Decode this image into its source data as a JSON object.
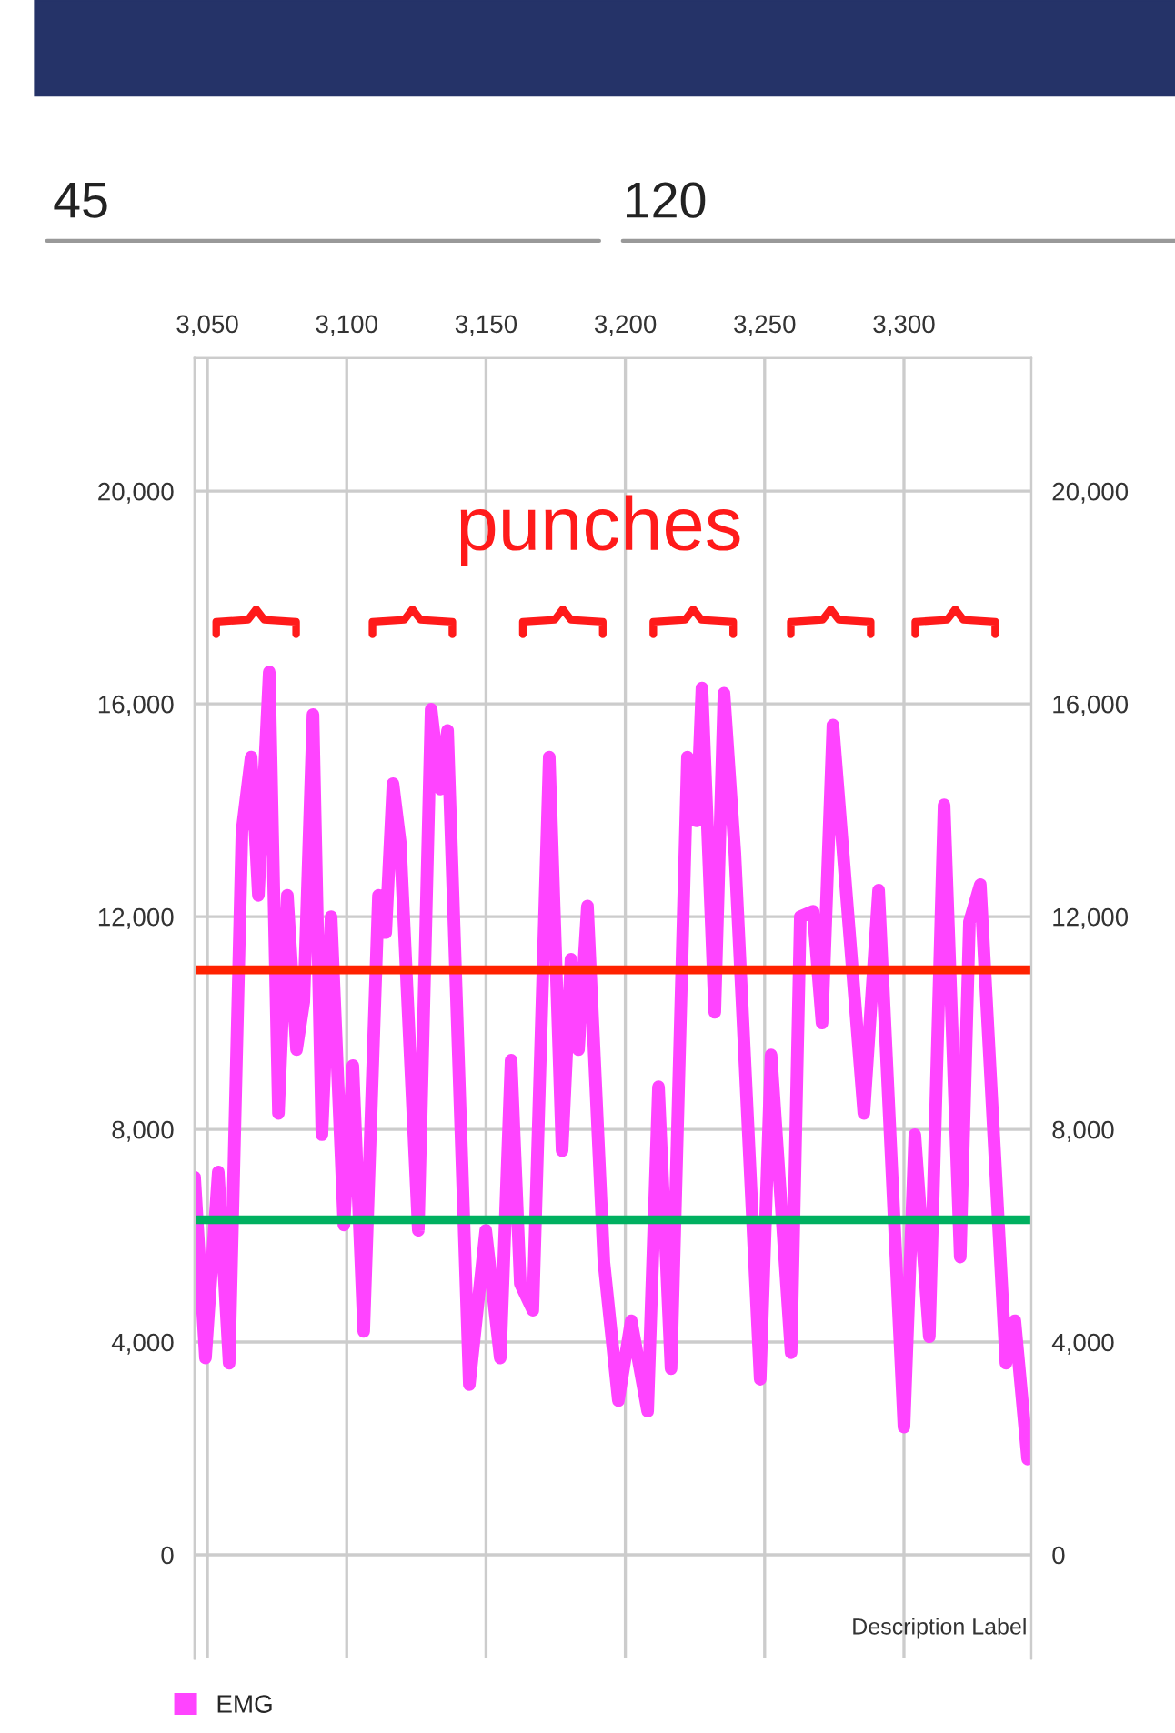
{
  "chart_data": {
    "type": "line",
    "x": [
      3045.4,
      3049.3,
      3053.9,
      3057.8,
      3062.4,
      3065.7,
      3068.3,
      3072.2,
      3075.5,
      3078.7,
      3082,
      3084.6,
      3087.9,
      3091.1,
      3094.4,
      3099,
      3102.2,
      3106.1,
      3111.4,
      3114,
      3116.6,
      3119.2,
      3125.7,
      3130.3,
      3133.6,
      3136.2,
      3144,
      3149.9,
      3155.1,
      3159,
      3162.3,
      3166.8,
      3172.7,
      3177.3,
      3180.5,
      3183.2,
      3186.4,
      3192.3,
      3197.5,
      3202.1,
      3208,
      3211.9,
      3216.4,
      3222.3,
      3225.6,
      3227.5,
      3232.1,
      3235.4,
      3239.3,
      3248.4,
      3252.3,
      3259.5,
      3262.8,
      3267.4,
      3270.6,
      3274.5,
      3285.6,
      3290.9,
      3300,
      3303.9,
      3309.1,
      3314.4,
      3320.2,
      3323.5,
      3327.4,
      3336.6,
      3339.8,
      3344.4
    ],
    "series": [
      {
        "name": "EMG",
        "color": "#ff44ff",
        "values": [
          7100,
          3700,
          7200,
          3600,
          13600,
          15000,
          12400,
          16600,
          8300,
          12400,
          9500,
          10400,
          15800,
          7900,
          12000,
          6200,
          9200,
          4200,
          12400,
          11700,
          14500,
          13400,
          6100,
          15900,
          14400,
          15500,
          3200,
          6100,
          3700,
          9300,
          5100,
          4600,
          15000,
          7600,
          11200,
          9500,
          12200,
          5500,
          2900,
          4400,
          2700,
          8800,
          3500,
          15000,
          13800,
          16300,
          10200,
          16200,
          13200,
          3300,
          9400,
          3800,
          12000,
          12100,
          10000,
          15600,
          8300,
          12500,
          2400,
          7900,
          4100,
          14100,
          5600,
          11900,
          12600,
          3600,
          4400,
          1800
        ]
      }
    ],
    "xlim": [
      3045.4,
      3345.7
    ],
    "xticks": [
      {
        "value": 3050,
        "label": "3,050"
      },
      {
        "value": 3100,
        "label": "3,100"
      },
      {
        "value": 3150,
        "label": "3,150"
      },
      {
        "value": 3200,
        "label": "3,200"
      },
      {
        "value": 3250,
        "label": "3,250"
      },
      {
        "value": 3300,
        "label": "3,300"
      }
    ],
    "ylim": [
      -1950,
      22500
    ],
    "yticks": [
      {
        "value": 0,
        "label": "0"
      },
      {
        "value": 4000,
        "label": "4,000"
      },
      {
        "value": 8000,
        "label": "8,000"
      },
      {
        "value": 12000,
        "label": "12,000"
      },
      {
        "value": 16000,
        "label": "16,000"
      },
      {
        "value": 20000,
        "label": "20,000"
      }
    ],
    "y2lim": [
      -1950,
      22500
    ],
    "y2ticks": [
      {
        "value": 0,
        "label": "0"
      },
      {
        "value": 4000,
        "label": "4,000"
      },
      {
        "value": 8000,
        "label": "8,000"
      },
      {
        "value": 12000,
        "label": "12,000"
      },
      {
        "value": 16000,
        "label": "16,000"
      },
      {
        "value": 20000,
        "label": "20,000"
      }
    ],
    "ref_lines": [
      {
        "axis": "y",
        "value": 11000,
        "color": "#ff2200"
      },
      {
        "axis": "y",
        "value": 6300,
        "color": "#00b060"
      }
    ],
    "annotations": [
      "punches",
      "45",
      "120",
      "Description Label"
    ],
    "grid": true,
    "legend": "bottom left",
    "marker": "none",
    "line_style": "solid"
  }
}
